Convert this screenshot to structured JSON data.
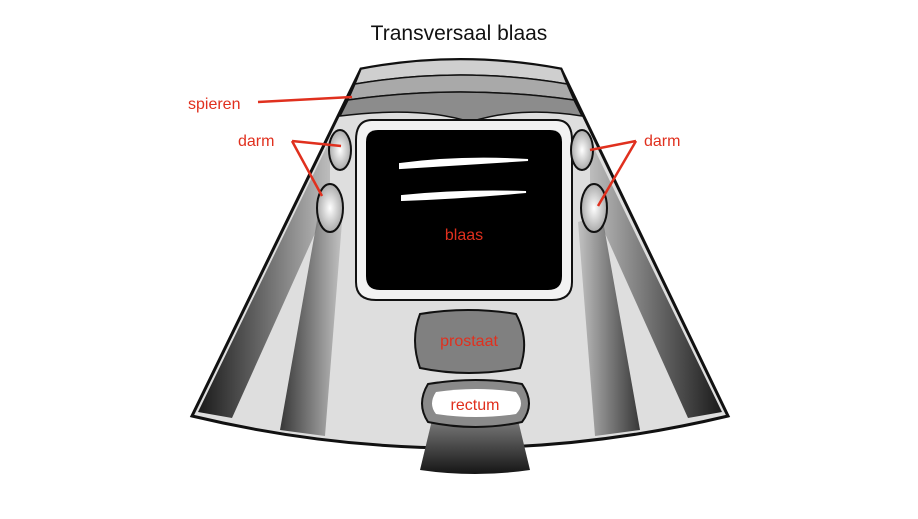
{
  "title": "Transversaal blaas",
  "labels": {
    "muscles": "spieren",
    "bowel_left": "darm",
    "bowel_right": "darm",
    "bladder": "blaas",
    "prostate": "prostaat",
    "rectum": "rectum"
  },
  "colors": {
    "label": "#e0301e",
    "outline": "#111111",
    "background_tissue": "#dcdcdc",
    "bladder_fill": "#000000",
    "prostate_fill": "#808080"
  }
}
